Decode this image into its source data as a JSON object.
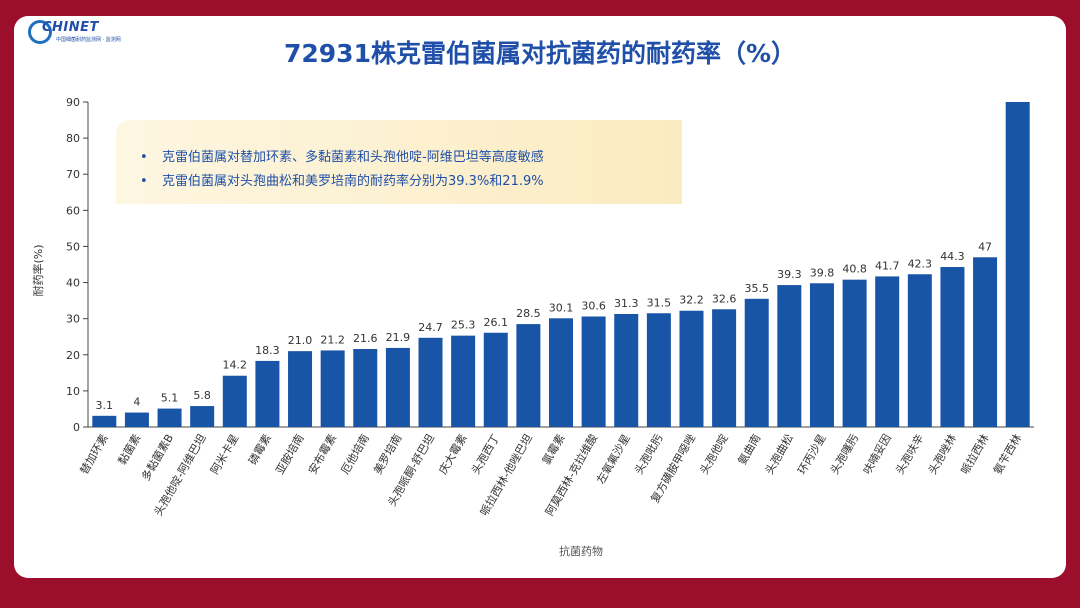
{
  "logo": {
    "brand": "CHINET",
    "subtitle": "中国细菌耐药监测网 · 监测网"
  },
  "slide": {
    "title": "72931株克雷伯菌属对抗菌药的耐药率（%）"
  },
  "callout": {
    "bullet": "•",
    "items": [
      "克雷伯菌属对替加环素、多黏菌素和头孢他啶-阿维巴坦等高度敏感",
      "克雷伯菌属对头孢曲松和美罗培南的耐药率分别为39.3%和21.9%"
    ]
  },
  "colors": {
    "bar": "#1955a6",
    "background": "#9b0f2c",
    "title": "#1f4fa8"
  },
  "chart_data": {
    "type": "bar",
    "xlabel": "抗菌药物",
    "ylabel": "耐药率(%)",
    "ylim": [
      0,
      90
    ],
    "yticks": [
      0,
      10,
      20,
      30,
      40,
      50,
      60,
      70,
      80,
      90
    ],
    "grid": false,
    "categories": [
      "替加环素",
      "黏菌素",
      "多黏菌素B",
      "头孢他啶-阿维巴坦",
      "阿米卡星",
      "磷霉素",
      "亚胺培南",
      "安布霉素",
      "厄他培南",
      "美罗培南",
      "头孢哌酮-舒巴坦",
      "庆大霉素",
      "头孢西丁",
      "哌拉西林-他唑巴坦",
      "氯霉素",
      "阿莫西林-克拉维酸",
      "左氧氟沙星",
      "头孢吡肟",
      "复方磺胺甲噁唑",
      "头孢他啶",
      "氨曲南",
      "头孢曲松",
      "环丙沙星",
      "头孢噻肟",
      "呋喃妥因",
      "头孢呋辛",
      "头孢唑林",
      "哌拉西林",
      "氨苄西林"
    ],
    "values": [
      3.1,
      4,
      5.1,
      5.8,
      14.2,
      18.3,
      21.0,
      21.2,
      21.6,
      21.9,
      24.7,
      25.3,
      26.1,
      28.5,
      30.1,
      30.6,
      31.3,
      31.5,
      32.2,
      32.6,
      35.5,
      39.3,
      39.8,
      40.8,
      41.7,
      42.3,
      44.3,
      47,
      90
    ],
    "value_labels": [
      "3.1",
      "4",
      "5.1",
      "5.8",
      "14.2",
      "18.3",
      "21.0",
      "21.2",
      "21.6",
      "21.9",
      "24.7",
      "25.3",
      "26.1",
      "28.5",
      "30.1",
      "30.6",
      "31.3",
      "31.5",
      "32.2",
      "32.6",
      "35.5",
      "39.3",
      "39.8",
      "40.8",
      "41.7",
      "42.3",
      "44.3",
      "47",
      ""
    ]
  }
}
